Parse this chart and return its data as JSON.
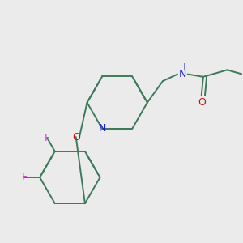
{
  "background_color": "#ebebeb",
  "bond_color": "#3d7a5c",
  "atom_colors": {
    "N": "#2020cc",
    "O": "#cc1111",
    "F": "#cc44cc"
  },
  "lw": 1.4
}
